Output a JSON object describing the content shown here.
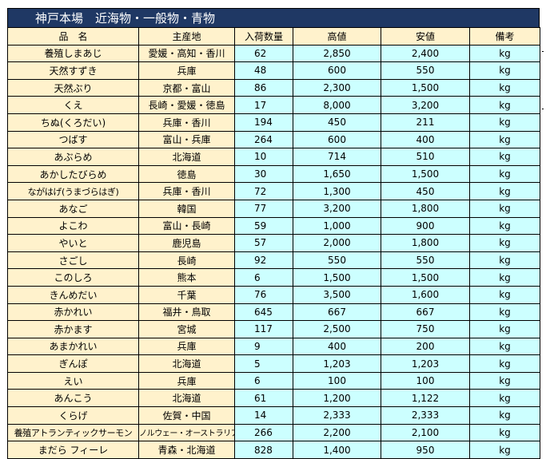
{
  "title": "神戸本場　近海物・一般物・青物",
  "headers": {
    "name": "品　名",
    "origin": "主産地",
    "quantity": "入荷数量",
    "high": "高値",
    "low": "安値",
    "note": "備考"
  },
  "rows": [
    {
      "name": "養殖しまあじ",
      "origin": "愛媛・高知・香川",
      "quantity": "62",
      "high": "2,850",
      "low": "2,400",
      "note": "kg"
    },
    {
      "name": "天然すずき",
      "origin": "兵庫",
      "quantity": "48",
      "high": "600",
      "low": "550",
      "note": "kg"
    },
    {
      "name": "天然ぶり",
      "origin": "京都・富山",
      "quantity": "86",
      "high": "2,300",
      "low": "1,500",
      "note": "kg"
    },
    {
      "name": "くえ",
      "origin": "長崎・愛媛・徳島",
      "quantity": "17",
      "high": "8,000",
      "low": "3,200",
      "note": "kg"
    },
    {
      "name": "ちぬ(くろだい)",
      "origin": "兵庫・香川",
      "quantity": "194",
      "high": "450",
      "low": "211",
      "note": "kg"
    },
    {
      "name": "つばす",
      "origin": "富山・兵庫",
      "quantity": "264",
      "high": "600",
      "low": "400",
      "note": "kg"
    },
    {
      "name": "あぶらめ",
      "origin": "北海道",
      "quantity": "10",
      "high": "714",
      "low": "510",
      "note": "kg"
    },
    {
      "name": "あかしたびらめ",
      "origin": "徳島",
      "quantity": "30",
      "high": "1,650",
      "low": "1,500",
      "note": "kg"
    },
    {
      "name": "ながはげ(うまづらはぎ)",
      "origin": "兵庫・香川",
      "quantity": "72",
      "high": "1,300",
      "low": "450",
      "note": "kg"
    },
    {
      "name": "あなご",
      "origin": "韓国",
      "quantity": "77",
      "high": "3,200",
      "low": "1,800",
      "note": "kg"
    },
    {
      "name": "よこわ",
      "origin": "富山・長崎",
      "quantity": "59",
      "high": "1,000",
      "low": "900",
      "note": "kg"
    },
    {
      "name": "やいと",
      "origin": "鹿児島",
      "quantity": "57",
      "high": "2,000",
      "low": "1,800",
      "note": "kg"
    },
    {
      "name": "さごし",
      "origin": "長崎",
      "quantity": "92",
      "high": "550",
      "low": "550",
      "note": "kg"
    },
    {
      "name": "このしろ",
      "origin": "熊本",
      "quantity": "6",
      "high": "1,500",
      "low": "1,500",
      "note": "kg"
    },
    {
      "name": "きんめだい",
      "origin": "千葉",
      "quantity": "76",
      "high": "3,500",
      "low": "1,600",
      "note": "kg"
    },
    {
      "name": "赤かれい",
      "origin": "福井・鳥取",
      "quantity": "645",
      "high": "667",
      "low": "667",
      "note": "kg"
    },
    {
      "name": "赤かます",
      "origin": "宮城",
      "quantity": "117",
      "high": "2,500",
      "low": "750",
      "note": "kg"
    },
    {
      "name": "あまかれい",
      "origin": "兵庫",
      "quantity": "9",
      "high": "400",
      "low": "200",
      "note": "kg"
    },
    {
      "name": "ぎんぽ",
      "origin": "北海道",
      "quantity": "5",
      "high": "1,203",
      "low": "1,203",
      "note": "kg"
    },
    {
      "name": "えい",
      "origin": "兵庫",
      "quantity": "6",
      "high": "100",
      "low": "100",
      "note": "kg"
    },
    {
      "name": "あんこう",
      "origin": "北海道",
      "quantity": "61",
      "high": "1,200",
      "low": "1,122",
      "note": "kg"
    },
    {
      "name": "くらげ",
      "origin": "佐賀・中国",
      "quantity": "14",
      "high": "2,333",
      "low": "2,333",
      "note": "kg"
    },
    {
      "name": "養殖アトランティックサーモン",
      "origin": "ノルウェー・オーストラリア他",
      "quantity": "266",
      "high": "2,200",
      "low": "2,100",
      "note": "kg"
    },
    {
      "name": "まだら フィーレ",
      "origin": "青森・北海道",
      "quantity": "828",
      "high": "1,400",
      "low": "950",
      "note": "kg"
    }
  ]
}
